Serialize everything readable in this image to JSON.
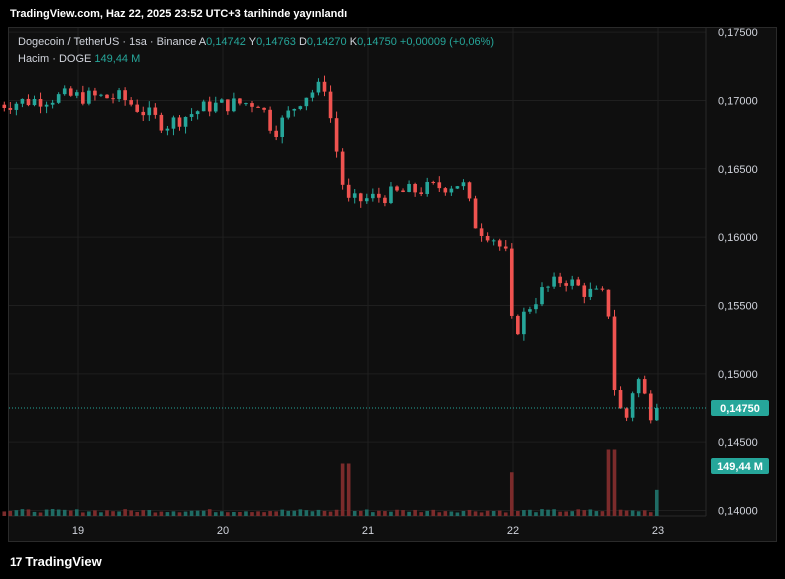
{
  "header": {
    "published": "TradingView.com, Haz 22, 2025 23:52 UTC+3 tarihinde yayınlandı"
  },
  "legend": {
    "symbol": "Dogecoin / TetherUS · 1sa · Binance",
    "o_label": "A",
    "o": "0,14742",
    "h_label": "Y",
    "h": "0,14763",
    "l_label": "D",
    "l": "0,14270",
    "c_label": "K",
    "c": "0,14750",
    "change": "+0,00009 (+0,06%)",
    "volume_label": "Hacim · DOGE",
    "volume": "149,44 M"
  },
  "footer": {
    "brand": "TradingView",
    "logo_glyph": "17"
  },
  "colors": {
    "up": "#26a69a",
    "down": "#ef5350",
    "up_vol": "#1f6b64",
    "down_vol": "#7b2b2b",
    "grid": "#1f1f1f"
  },
  "chart_data": {
    "type": "candlestick",
    "interval": "1h",
    "y_axis": {
      "ticks": [
        "0,17500",
        "0,17000",
        "0,16500",
        "0,16000",
        "0,15500",
        "0,15000",
        "0,14500",
        "0,14000"
      ],
      "range": [
        0.1396,
        0.1753
      ]
    },
    "x_axis": {
      "ticks": [
        "19",
        "20",
        "21",
        "22",
        "23"
      ]
    },
    "last_price_label": "0,14750",
    "last_volume_label": "149,44 M",
    "anchors": [
      {
        "day": 18.45,
        "close": 0.1697
      },
      {
        "day": 18.9,
        "close": 0.1703
      },
      {
        "day": 19.3,
        "close": 0.1702
      },
      {
        "day": 19.6,
        "close": 0.1682
      },
      {
        "day": 19.9,
        "close": 0.1696
      },
      {
        "day": 20.25,
        "close": 0.1699
      },
      {
        "day": 20.35,
        "close": 0.1677
      },
      {
        "day": 20.55,
        "close": 0.1703
      },
      {
        "day": 20.7,
        "close": 0.1711
      },
      {
        "day": 20.78,
        "close": 0.1665
      },
      {
        "day": 20.85,
        "close": 0.1625
      },
      {
        "day": 21.2,
        "close": 0.1632
      },
      {
        "day": 21.5,
        "close": 0.1637
      },
      {
        "day": 21.65,
        "close": 0.164
      },
      {
        "day": 21.75,
        "close": 0.1607
      },
      {
        "day": 21.85,
        "close": 0.1602
      },
      {
        "day": 21.95,
        "close": 0.1587
      },
      {
        "day": 22.0,
        "close": 0.1527
      },
      {
        "day": 22.1,
        "close": 0.1548
      },
      {
        "day": 22.2,
        "close": 0.156
      },
      {
        "day": 22.35,
        "close": 0.157
      },
      {
        "day": 22.5,
        "close": 0.156
      },
      {
        "day": 22.65,
        "close": 0.1556
      },
      {
        "day": 22.7,
        "close": 0.149
      },
      {
        "day": 22.77,
        "close": 0.1462
      },
      {
        "day": 22.85,
        "close": 0.15
      },
      {
        "day": 22.95,
        "close": 0.1472
      },
      {
        "day": 23.0,
        "close": 0.1475
      }
    ],
    "volume_spikes": [
      {
        "day": 20.85,
        "volume": 300
      },
      {
        "day": 22.0,
        "volume": 250
      },
      {
        "day": 22.68,
        "volume": 380
      },
      {
        "day": 23.0,
        "volume": 149.44
      }
    ]
  }
}
